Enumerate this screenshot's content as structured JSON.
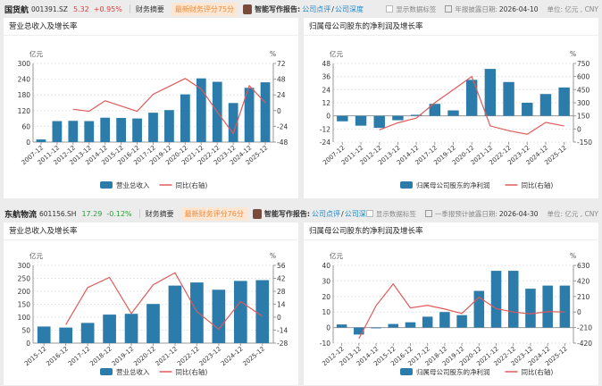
{
  "companies": [
    {
      "name": "国货航",
      "code": "001391.SZ",
      "price": "5.32",
      "change": "+0.95%",
      "price_color": "#e03c3c",
      "summary": "财务摘要",
      "score": "最新财务评分75分",
      "ai_label": "智能写作报告:",
      "link1": "公司点评",
      "slash": "/",
      "link2": "公司深度",
      "show_labels": "显示数据标签",
      "date_label": "年报披露日期:",
      "date": "2026-04-10",
      "unit": "单位: 亿元 , CNY"
    },
    {
      "name": "东航物流",
      "code": "601156.SH",
      "price": "17.29",
      "change": "-0.12%",
      "price_color": "#2a9d3a",
      "summary": "财务摘要",
      "score": "最新财务评分76分",
      "ai_label": "智能写作报告:",
      "link1": "公司点评",
      "slash": "/",
      "link2": "公司深度",
      "show_labels": "显示数据标签",
      "date_label": "一季报预计披露日期:",
      "date": "2026-04-30",
      "unit": "单位: 亿元 , CNY"
    }
  ],
  "colors": {
    "bar": "#2b7bab",
    "line": "#e05a5a"
  },
  "chart_data": [
    {
      "type": "bar+line",
      "title": "营业总收入及增长率",
      "left_unit": "亿元",
      "right_unit": "%",
      "categories": [
        "2007-12",
        "2011-12",
        "2012-12",
        "2013-12",
        "2014-12",
        "2015-12",
        "2016-12",
        "2017-12",
        "2019-12",
        "2020-12",
        "2021-12",
        "2022-12",
        "2023-12",
        "2024-12",
        "2025-12"
      ],
      "bar_series": {
        "name": "营业总收入",
        "values": [
          10,
          80,
          81,
          80,
          93,
          92,
          90,
          112,
          122,
          182,
          243,
          230,
          149,
          207,
          228
        ]
      },
      "line_series": {
        "name": "同比(右轴)",
        "values": [
          null,
          null,
          2,
          -1,
          15,
          7,
          -1,
          25,
          37,
          49,
          33,
          -2,
          -35,
          38,
          12
        ]
      },
      "ylim": [
        0,
        300
      ],
      "yticks": [
        0,
        60,
        120,
        180,
        240,
        300
      ],
      "y2lim": [
        -48,
        72
      ],
      "y2ticks": [
        -48,
        -24,
        0,
        24,
        48,
        72
      ],
      "grid": true,
      "legend": "bottom"
    },
    {
      "type": "bar+line",
      "title": "归属母公司股东的净利润及增长率",
      "left_unit": "亿元",
      "right_unit": "%",
      "categories": [
        "2007-12",
        "2011-12",
        "2012-12",
        "2013-12",
        "2014-12",
        "2017-12",
        "2019-12",
        "2020-12",
        "2021-12",
        "2022-12",
        "2023-12",
        "2024-12",
        "2025-12"
      ],
      "bar_series": {
        "name": "归属母公司股东的净利润",
        "values": [
          -5,
          -9,
          -11,
          -4,
          1,
          11,
          5,
          33,
          43,
          31,
          12,
          20,
          26
        ]
      },
      "line_series": {
        "name": "同比(右轴)",
        "values": [
          null,
          null,
          -10,
          70,
          125,
          300,
          450,
          600,
          35,
          -20,
          -60,
          75,
          35
        ]
      },
      "ylim": [
        -24,
        48
      ],
      "yticks": [
        -24,
        -12,
        0,
        12,
        24,
        36,
        48
      ],
      "y2lim": [
        -150,
        750
      ],
      "y2ticks": [
        -150,
        0,
        150,
        300,
        450,
        600,
        750
      ],
      "grid": true,
      "legend": "bottom"
    },
    {
      "type": "bar+line",
      "title": "营业总收入及增长率",
      "left_unit": "亿元",
      "right_unit": "%",
      "categories": [
        "2015-12",
        "2016-12",
        "2017-12",
        "2018-12",
        "2019-12",
        "2020-12",
        "2021-12",
        "2022-12",
        "2023-12",
        "2024-12",
        "2025-12"
      ],
      "bar_series": {
        "name": "营业总收入",
        "values": [
          64,
          60,
          78,
          110,
          113,
          151,
          222,
          234,
          206,
          240,
          243
        ]
      },
      "line_series": {
        "name": "同比(右轴)",
        "values": [
          null,
          -8,
          32,
          43,
          4,
          35,
          48,
          6,
          -13,
          17,
          1
        ]
      },
      "ylim": [
        0,
        300
      ],
      "yticks": [
        0,
        50,
        100,
        150,
        200,
        250,
        300
      ],
      "y2lim": [
        -28,
        56
      ],
      "y2ticks": [
        -28,
        -14,
        0,
        14,
        28,
        42,
        56
      ],
      "grid": true,
      "legend": "bottom"
    },
    {
      "type": "bar+line",
      "title": "归属母公司股东的净利润及增长率",
      "left_unit": "亿元",
      "right_unit": "%",
      "categories": [
        "2012-12",
        "2013-12",
        "2014-12",
        "2015-12",
        "2016-12",
        "2017-12",
        "2018-12",
        "2019-12",
        "2020-12",
        "2021-12",
        "2022-12",
        "2023-12",
        "2024-12",
        "2025-12"
      ],
      "bar_series": {
        "name": "归属母公司股东的净利润",
        "values": [
          2,
          -4.5,
          -0.5,
          2.3,
          3.4,
          7,
          10,
          8,
          23.6,
          36.5,
          36.5,
          25,
          27,
          27
        ]
      },
      "line_series": {
        "name": "同比(右轴)",
        "values": [
          null,
          -360,
          85,
          380,
          55,
          90,
          40,
          -20,
          200,
          45,
          0,
          -25,
          5,
          0
        ]
      },
      "ylim": [
        -10,
        40
      ],
      "yticks": [
        -10,
        0,
        10,
        20,
        30,
        40
      ],
      "y2lim": [
        -420,
        630
      ],
      "y2ticks": [
        -420,
        -210,
        0,
        210,
        420,
        630
      ],
      "grid": true,
      "legend": "bottom"
    }
  ]
}
